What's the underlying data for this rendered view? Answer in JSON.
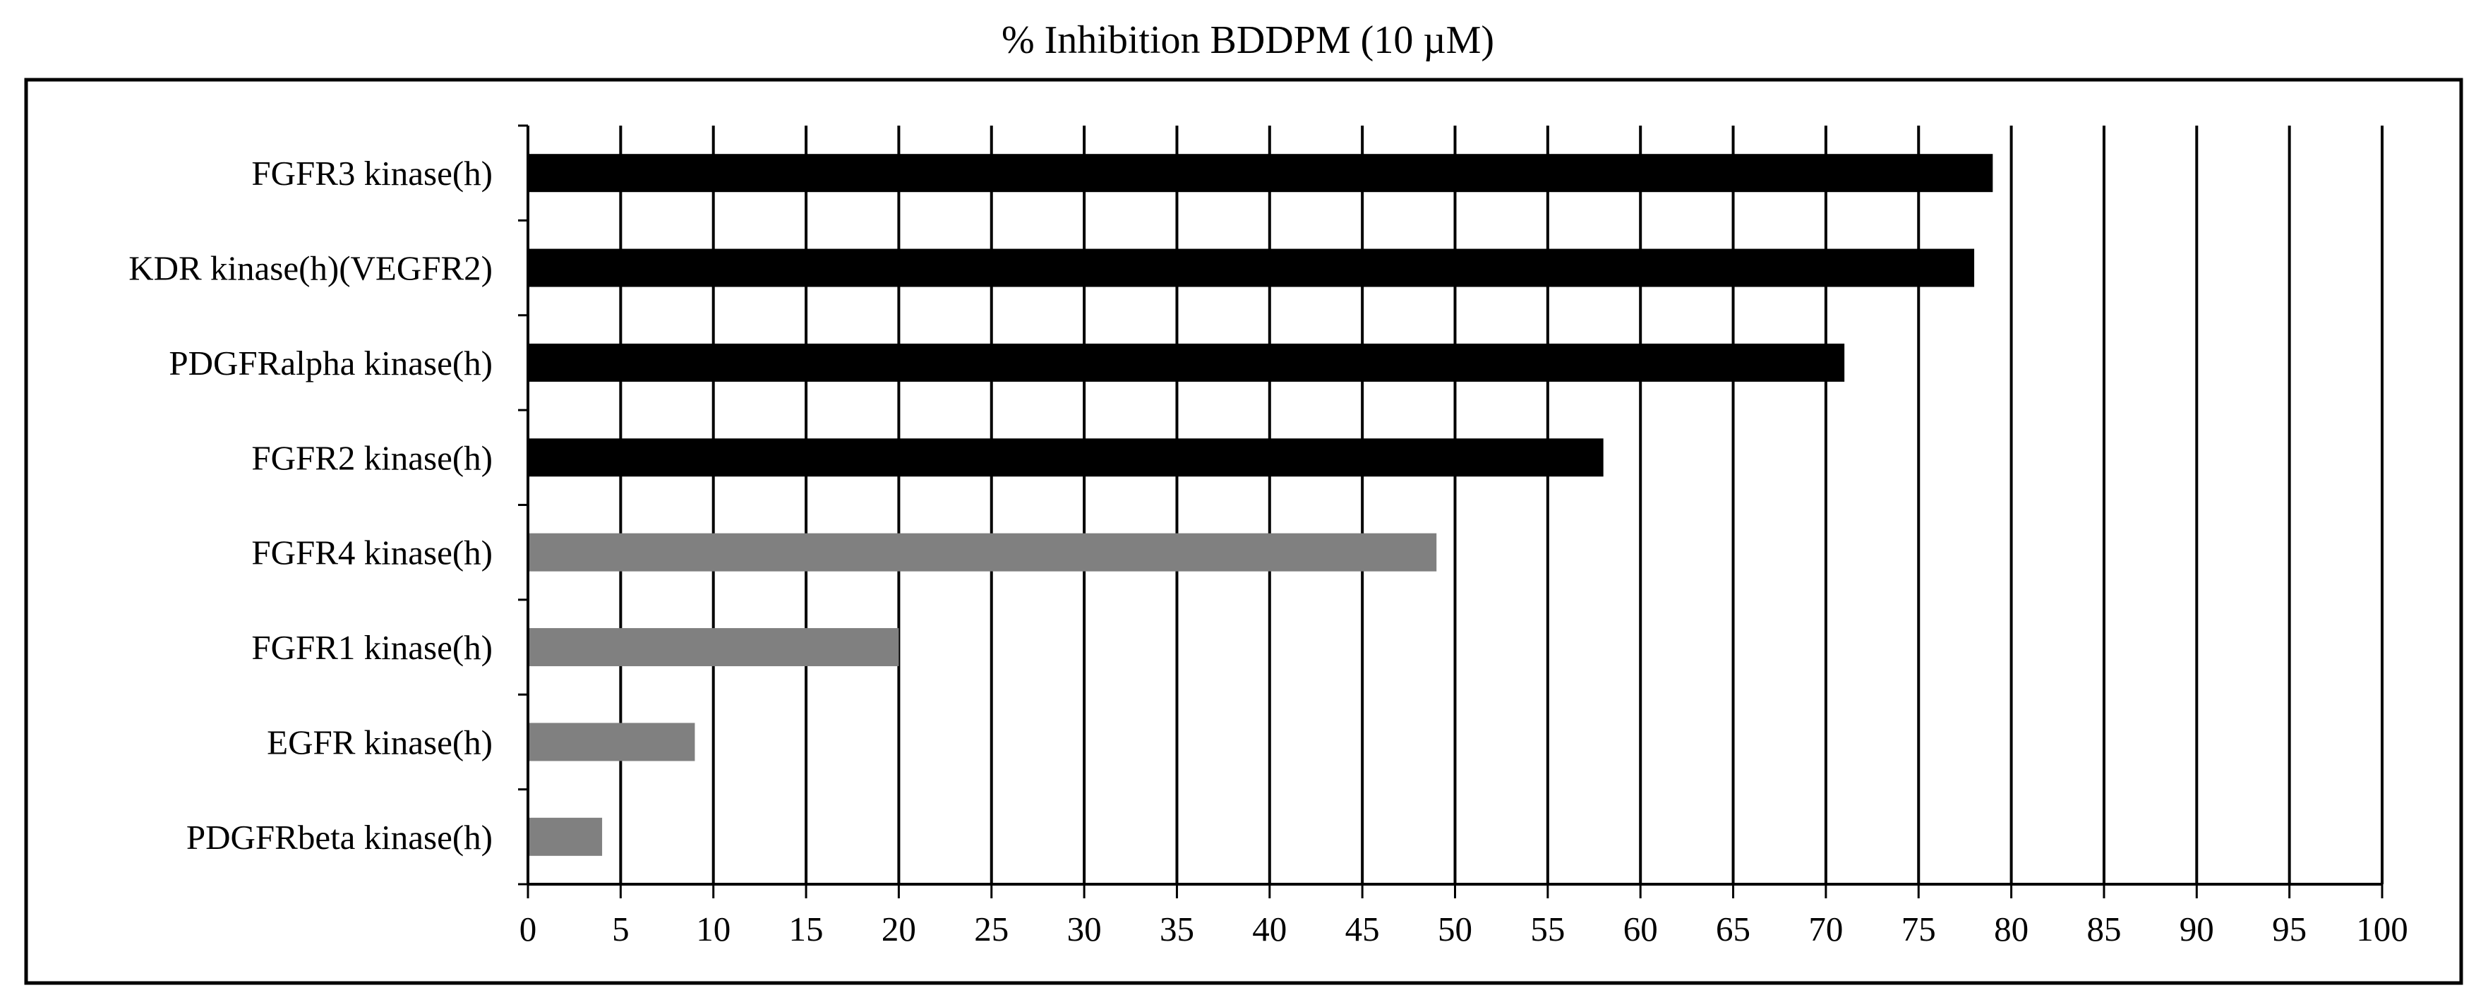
{
  "chart_data": {
    "type": "bar",
    "orientation": "horizontal",
    "title": "% Inhibition BDDPM (10 µM)",
    "xlabel": "",
    "ylabel": "",
    "xlim": [
      0,
      100
    ],
    "x_tick_step": 5,
    "grid": "vertical",
    "legend": "none",
    "categories": [
      "FGFR3 kinase(h)",
      "KDR kinase(h)(VEGFR2)",
      "PDGFRalpha kinase(h)",
      "FGFR2 kinase(h)",
      "FGFR4 kinase(h)",
      "FGFR1 kinase(h)",
      "EGFR kinase(h)",
      "PDGFRbeta kinase(h)"
    ],
    "values": [
      79,
      78,
      71,
      58,
      49,
      20,
      9,
      4
    ],
    "bar_colors": [
      "#000000",
      "#000000",
      "#000000",
      "#000000",
      "#808080",
      "#808080",
      "#808080",
      "#808080"
    ]
  }
}
